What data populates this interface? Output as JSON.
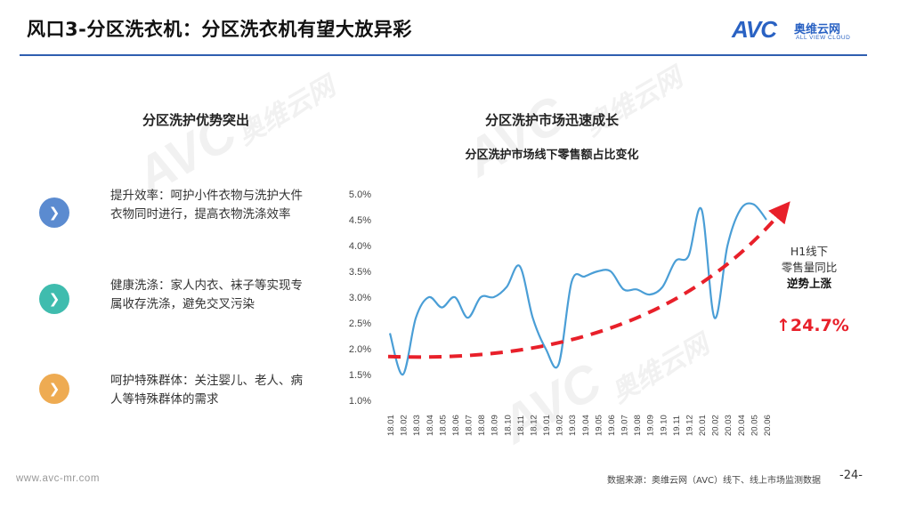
{
  "header": {
    "title": "风口3-分区洗衣机：分区洗衣机有望大放异彩",
    "logo": {
      "mark": "AVC",
      "cn": "奥维云网",
      "en": "ALL VIEW CLOUD"
    }
  },
  "watermark": {
    "mark": "AVC",
    "cn": "奥维云网",
    "en": "ALL VIEW CLOUD"
  },
  "left_panel": {
    "title": "分区洗护优势突出",
    "features": [
      {
        "text": "提升效率：呵护小件衣物与洗护大件衣物同时进行，提高衣物洗涤效率",
        "color": "#5b8bd0"
      },
      {
        "text": "健康洗涤：家人内衣、袜子等实现专属收存洗涤，避免交叉污染",
        "color": "#3fbcae"
      },
      {
        "text": "呵护特殊群体：关注婴儿、老人、病人等特殊群体的需求",
        "color": "#eeab52"
      }
    ]
  },
  "chart_data": {
    "type": "line",
    "title": "分区洗护市场迅速成长",
    "subtitle": "分区洗护市场线下零售额占比变化",
    "categories": [
      "18.01",
      "18.02",
      "18.03",
      "18.04",
      "18.05",
      "18.06",
      "18.07",
      "18.08",
      "18.09",
      "18.10",
      "18.11",
      "18.12",
      "19.01",
      "19.02",
      "19.03",
      "19.04",
      "19.05",
      "19.06",
      "19.07",
      "19.08",
      "19.09",
      "19.10",
      "19.11",
      "19.12",
      "20.01",
      "20.02",
      "20.03",
      "20.04",
      "20.05",
      "20.06"
    ],
    "values": [
      2.3,
      1.5,
      2.6,
      3.0,
      2.8,
      3.0,
      2.6,
      3.0,
      3.0,
      3.2,
      3.6,
      2.6,
      2.0,
      1.7,
      3.3,
      3.4,
      3.5,
      3.5,
      3.15,
      3.15,
      3.05,
      3.2,
      3.7,
      3.8,
      4.7,
      2.6,
      4.0,
      4.7,
      4.8,
      4.5
    ],
    "y_ticks": [
      "1.0%",
      "1.5%",
      "2.0%",
      "2.5%",
      "3.0%",
      "3.5%",
      "4.0%",
      "4.5%",
      "5.0%"
    ],
    "ylim": [
      1.0,
      5.0
    ],
    "trend": "dashed red arrow rising",
    "line_color": "#4a9ed6",
    "trend_color": "#e8202a",
    "grid": false,
    "legend": "none"
  },
  "annotation": {
    "line1": "H1线下",
    "line2": "零售量同比",
    "line3": "逆势上涨",
    "growth": "↑24.7%"
  },
  "footer": {
    "url": "www.avc-mr.com",
    "source": "数据来源：奥维云网（AVC）线下、线上市场监测数据",
    "page": "-24-"
  }
}
